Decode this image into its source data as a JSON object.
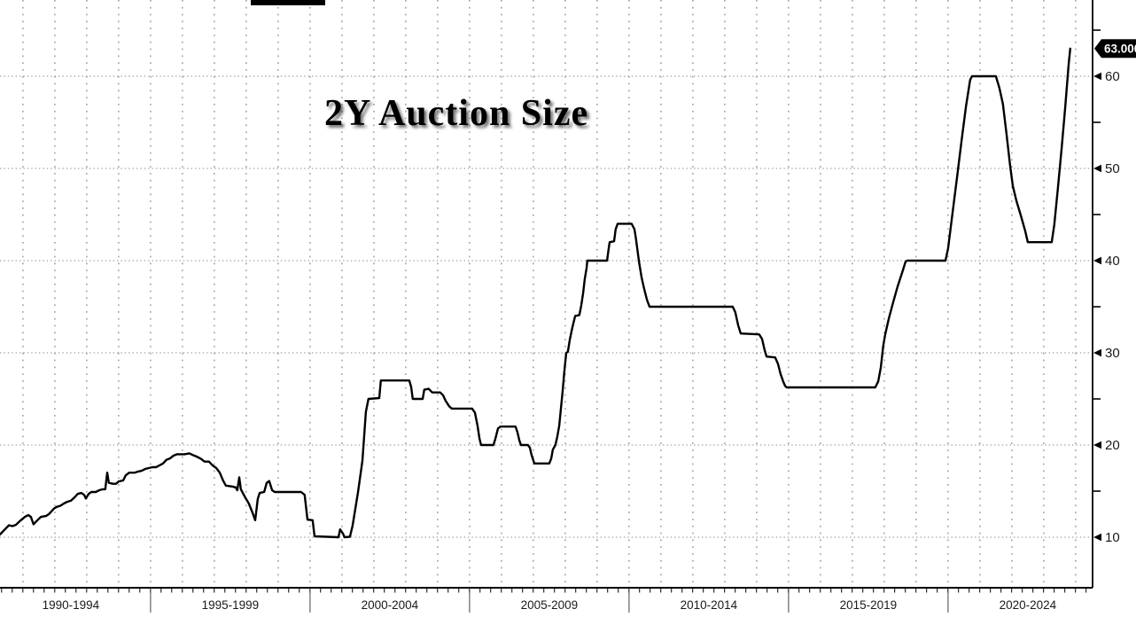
{
  "title": "2Y Auction Size",
  "last_price_badge": "63.000",
  "colors": {
    "background": "#ffffff",
    "line": "#000000",
    "grid_horizontal": "#8a8a8a",
    "grid_vertical": "#6e6e6e",
    "axis": "#000000",
    "badge_bg": "#000000",
    "badge_text": "#ffffff",
    "label_text": "#1a1a1a",
    "header_bar": "#000000"
  },
  "y_axis": {
    "tick_labels": [
      "10",
      "20",
      "30",
      "40",
      "50",
      "60"
    ],
    "tick_values": [
      10,
      20,
      30,
      40,
      50,
      60
    ],
    "minor_tick_values": [
      15,
      25,
      35,
      45,
      55,
      65
    ]
  },
  "x_axis": {
    "period_labels": [
      "1990-1994",
      "1995-1999",
      "2000-2004",
      "2005-2009",
      "2010-2014",
      "2015-2019",
      "2020-2024"
    ],
    "period_boundary_years": [
      1995,
      2000,
      2005,
      2010,
      2015,
      2020
    ]
  },
  "chart_data": {
    "type": "line",
    "title": "2Y Auction Size",
    "xlabel": "",
    "ylabel": "",
    "grid": "dotted",
    "legend_position": "none",
    "x_range": [
      1990.28,
      2024.53
    ],
    "y_range": [
      4.52,
      68.27
    ],
    "y_ticks": [
      10,
      20,
      30,
      40,
      50,
      60
    ],
    "x_tick_step_years": 0.3333,
    "last_value": 63.0,
    "series": [
      {
        "name": "2Y Auction Size",
        "points": [
          [
            1990.28,
            10.3
          ],
          [
            1990.42,
            10.8
          ],
          [
            1990.56,
            11.3
          ],
          [
            1990.67,
            11.2
          ],
          [
            1990.78,
            11.35
          ],
          [
            1990.92,
            11.8
          ],
          [
            1991.06,
            12.2
          ],
          [
            1991.17,
            12.4
          ],
          [
            1991.25,
            12.2
          ],
          [
            1991.33,
            11.4
          ],
          [
            1991.44,
            11.8
          ],
          [
            1991.56,
            12.2
          ],
          [
            1991.72,
            12.3
          ],
          [
            1991.81,
            12.5
          ],
          [
            1991.89,
            12.8
          ],
          [
            1991.97,
            13.1
          ],
          [
            1992.06,
            13.3
          ],
          [
            1992.17,
            13.4
          ],
          [
            1992.28,
            13.65
          ],
          [
            1992.39,
            13.85
          ],
          [
            1992.5,
            13.95
          ],
          [
            1992.61,
            14.3
          ],
          [
            1992.72,
            14.7
          ],
          [
            1992.83,
            14.8
          ],
          [
            1992.92,
            14.6
          ],
          [
            1992.97,
            14.2
          ],
          [
            1993.06,
            14.7
          ],
          [
            1993.14,
            14.9
          ],
          [
            1993.28,
            14.9
          ],
          [
            1993.39,
            15.1
          ],
          [
            1993.5,
            15.2
          ],
          [
            1993.58,
            15.2
          ],
          [
            1993.64,
            17.0
          ],
          [
            1993.69,
            15.9
          ],
          [
            1993.81,
            15.8
          ],
          [
            1993.92,
            15.8
          ],
          [
            1994.0,
            16.05
          ],
          [
            1994.14,
            16.15
          ],
          [
            1994.22,
            16.7
          ],
          [
            1994.33,
            17.0
          ],
          [
            1994.5,
            17.0
          ],
          [
            1994.58,
            17.1
          ],
          [
            1994.72,
            17.2
          ],
          [
            1994.83,
            17.4
          ],
          [
            1994.94,
            17.5
          ],
          [
            1995.06,
            17.6
          ],
          [
            1995.17,
            17.6
          ],
          [
            1995.28,
            17.8
          ],
          [
            1995.39,
            18.0
          ],
          [
            1995.5,
            18.4
          ],
          [
            1995.61,
            18.55
          ],
          [
            1995.72,
            18.85
          ],
          [
            1995.83,
            19.0
          ],
          [
            1996.06,
            19.0
          ],
          [
            1996.22,
            19.1
          ],
          [
            1996.33,
            18.9
          ],
          [
            1996.44,
            18.75
          ],
          [
            1996.58,
            18.5
          ],
          [
            1996.69,
            18.2
          ],
          [
            1996.83,
            18.2
          ],
          [
            1996.94,
            17.8
          ],
          [
            1997.06,
            17.5
          ],
          [
            1997.17,
            17.0
          ],
          [
            1997.28,
            16.1
          ],
          [
            1997.36,
            15.6
          ],
          [
            1997.56,
            15.5
          ],
          [
            1997.67,
            15.4
          ],
          [
            1997.72,
            15.1
          ],
          [
            1997.78,
            16.5
          ],
          [
            1997.83,
            15.2
          ],
          [
            1997.89,
            14.8
          ],
          [
            1997.97,
            14.3
          ],
          [
            1998.08,
            13.65
          ],
          [
            1998.19,
            12.7
          ],
          [
            1998.28,
            11.85
          ],
          [
            1998.36,
            14.15
          ],
          [
            1998.42,
            14.8
          ],
          [
            1998.56,
            14.9
          ],
          [
            1998.64,
            15.9
          ],
          [
            1998.72,
            16.1
          ],
          [
            1998.81,
            15.1
          ],
          [
            1998.89,
            14.9
          ],
          [
            1999.72,
            14.9
          ],
          [
            1999.83,
            14.6
          ],
          [
            1999.92,
            11.9
          ],
          [
            2000.08,
            11.85
          ],
          [
            2000.14,
            10.1
          ],
          [
            2000.89,
            10.0
          ],
          [
            2000.94,
            10.85
          ],
          [
            2001.03,
            10.4
          ],
          [
            2001.08,
            10.0
          ],
          [
            2001.25,
            10.05
          ],
          [
            2001.33,
            11.2
          ],
          [
            2001.5,
            14.8
          ],
          [
            2001.64,
            18.3
          ],
          [
            2001.75,
            23.6
          ],
          [
            2001.83,
            25.0
          ],
          [
            2002.17,
            25.1
          ],
          [
            2002.22,
            27.0
          ],
          [
            2003.11,
            27.0
          ],
          [
            2003.17,
            26.3
          ],
          [
            2003.22,
            25.0
          ],
          [
            2003.53,
            25.0
          ],
          [
            2003.58,
            26.0
          ],
          [
            2003.72,
            26.1
          ],
          [
            2003.83,
            25.7
          ],
          [
            2004.08,
            25.7
          ],
          [
            2004.17,
            25.4
          ],
          [
            2004.25,
            24.8
          ],
          [
            2004.36,
            24.2
          ],
          [
            2004.44,
            23.95
          ],
          [
            2005.08,
            23.95
          ],
          [
            2005.17,
            23.5
          ],
          [
            2005.25,
            22.1
          ],
          [
            2005.31,
            20.7
          ],
          [
            2005.36,
            20.0
          ],
          [
            2005.75,
            20.0
          ],
          [
            2005.81,
            20.7
          ],
          [
            2005.89,
            21.8
          ],
          [
            2005.97,
            22.0
          ],
          [
            2006.44,
            22.0
          ],
          [
            2006.5,
            21.4
          ],
          [
            2006.56,
            20.5
          ],
          [
            2006.61,
            20.0
          ],
          [
            2006.83,
            20.0
          ],
          [
            2006.89,
            19.7
          ],
          [
            2006.94,
            18.95
          ],
          [
            2007.03,
            18.0
          ],
          [
            2007.5,
            18.0
          ],
          [
            2007.56,
            18.55
          ],
          [
            2007.61,
            19.5
          ],
          [
            2007.69,
            20.0
          ],
          [
            2007.75,
            20.9
          ],
          [
            2007.81,
            22.1
          ],
          [
            2007.86,
            23.85
          ],
          [
            2007.92,
            25.9
          ],
          [
            2007.97,
            27.9
          ],
          [
            2008.03,
            30.0
          ],
          [
            2008.08,
            30.1
          ],
          [
            2008.14,
            31.4
          ],
          [
            2008.22,
            32.7
          ],
          [
            2008.31,
            34.0
          ],
          [
            2008.44,
            34.1
          ],
          [
            2008.5,
            35.1
          ],
          [
            2008.56,
            36.5
          ],
          [
            2008.61,
            38.0
          ],
          [
            2008.67,
            39.2
          ],
          [
            2008.69,
            40.0
          ],
          [
            2009.31,
            40.0
          ],
          [
            2009.36,
            41.3
          ],
          [
            2009.39,
            42.0
          ],
          [
            2009.53,
            42.1
          ],
          [
            2009.58,
            43.4
          ],
          [
            2009.64,
            44.0
          ],
          [
            2010.08,
            44.0
          ],
          [
            2010.17,
            43.4
          ],
          [
            2010.22,
            42.3
          ],
          [
            2010.31,
            39.9
          ],
          [
            2010.39,
            38.2
          ],
          [
            2010.47,
            37.0
          ],
          [
            2010.56,
            35.75
          ],
          [
            2010.64,
            35.0
          ],
          [
            2013.25,
            35.0
          ],
          [
            2013.33,
            34.4
          ],
          [
            2013.42,
            33.0
          ],
          [
            2013.5,
            32.1
          ],
          [
            2014.08,
            32.0
          ],
          [
            2014.17,
            31.5
          ],
          [
            2014.25,
            30.3
          ],
          [
            2014.31,
            29.6
          ],
          [
            2014.58,
            29.5
          ],
          [
            2014.67,
            28.8
          ],
          [
            2014.75,
            27.7
          ],
          [
            2014.83,
            26.9
          ],
          [
            2014.89,
            26.4
          ],
          [
            2014.94,
            26.25
          ],
          [
            2017.72,
            26.25
          ],
          [
            2017.81,
            26.9
          ],
          [
            2017.89,
            28.4
          ],
          [
            2017.97,
            30.8
          ],
          [
            2018.03,
            32.0
          ],
          [
            2018.14,
            33.7
          ],
          [
            2018.28,
            35.5
          ],
          [
            2018.42,
            37.2
          ],
          [
            2018.56,
            38.7
          ],
          [
            2018.67,
            39.9
          ],
          [
            2018.72,
            40.0
          ],
          [
            2019.92,
            40.0
          ],
          [
            2020.0,
            41.3
          ],
          [
            2020.14,
            45.2
          ],
          [
            2020.28,
            49.0
          ],
          [
            2020.42,
            52.9
          ],
          [
            2020.56,
            56.7
          ],
          [
            2020.69,
            59.6
          ],
          [
            2020.75,
            60.0
          ],
          [
            2021.5,
            60.0
          ],
          [
            2021.61,
            58.7
          ],
          [
            2021.72,
            57.0
          ],
          [
            2021.83,
            53.8
          ],
          [
            2021.94,
            50.4
          ],
          [
            2022.03,
            48.1
          ],
          [
            2022.14,
            46.5
          ],
          [
            2022.28,
            44.9
          ],
          [
            2022.42,
            43.2
          ],
          [
            2022.5,
            42.0
          ],
          [
            2023.25,
            42.0
          ],
          [
            2023.33,
            43.9
          ],
          [
            2023.44,
            47.8
          ],
          [
            2023.56,
            52.2
          ],
          [
            2023.67,
            56.5
          ],
          [
            2023.78,
            61.3
          ],
          [
            2023.83,
            63.0
          ]
        ]
      }
    ]
  }
}
